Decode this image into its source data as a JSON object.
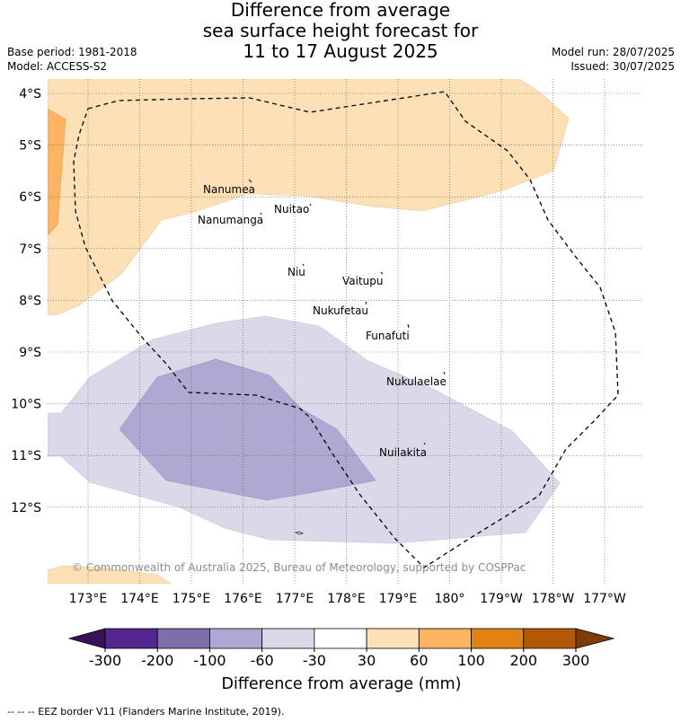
{
  "title": {
    "line1": "Difference from average",
    "line2": "sea surface height forecast for",
    "line3": "11 to 17 August 2025"
  },
  "meta_left": {
    "base_period": "Base period: 1981-2018",
    "model": "Model: ACCESS-S2"
  },
  "meta_right": {
    "model_run": "Model run: 28/07/2025",
    "issued": "Issued: 30/07/2025"
  },
  "map": {
    "lat_labels": [
      "4°S",
      "5°S",
      "6°S",
      "7°S",
      "8°S",
      "9°S",
      "10°S",
      "11°S",
      "12°S"
    ],
    "lon_labels": [
      "173°E",
      "174°E",
      "175°E",
      "176°E",
      "177°E",
      "178°E",
      "179°E",
      "180°",
      "179°W",
      "178°W",
      "177°W"
    ],
    "places": [
      {
        "name": "Nanumea"
      },
      {
        "name": "Nanumanga"
      },
      {
        "name": "Nuitao"
      },
      {
        "name": "Niu"
      },
      {
        "name": "Vaitupu"
      },
      {
        "name": "Nukufetau"
      },
      {
        "name": "Funafuti"
      },
      {
        "name": "Nukulaelae"
      },
      {
        "name": "Nuilakita"
      }
    ],
    "copyright": "© Commonwealth of Australia 2025, Bureau of Meteorology, supported by COSPPac"
  },
  "colorbar": {
    "title": "Difference from average (mm)",
    "ticks": [
      "-300",
      "-200",
      "-100",
      "-60",
      "-30",
      "30",
      "60",
      "100",
      "200",
      "300"
    ],
    "colors": {
      "under": "#3b0f5a",
      "bins": [
        "#54278f",
        "#7e6fab",
        "#afa8d2",
        "#d9d9e9",
        "#ffffff",
        "#fde0b6",
        "#fdb462",
        "#e08214",
        "#b35806"
      ],
      "over": "#7f3b08"
    }
  },
  "footer": "--  --  -- EEZ border V11 (Flanders Marine Institute, 2019)."
}
